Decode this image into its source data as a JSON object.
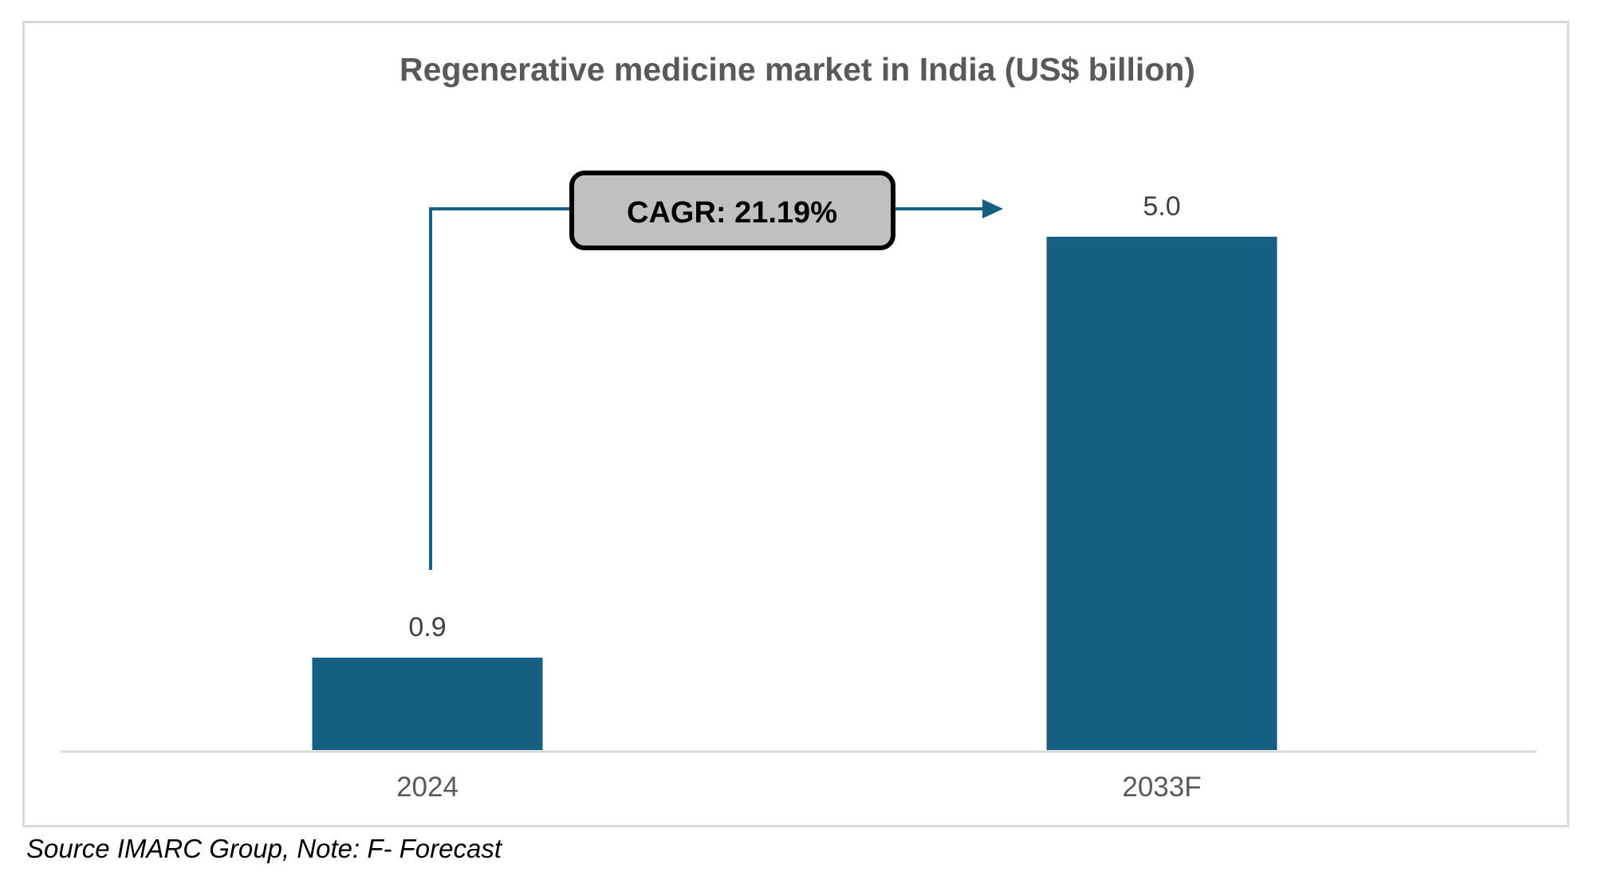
{
  "chart_data": {
    "type": "bar",
    "title": "Regenerative medicine market in India (US$ billion)",
    "categories": [
      "2024",
      "2033F"
    ],
    "values": [
      0.9,
      5.0
    ],
    "value_labels": [
      "0.9",
      "5.0"
    ],
    "xlabel": "",
    "ylabel": "",
    "ylim": [
      0,
      5.0
    ],
    "grid": false,
    "legend": "none",
    "bar_color": "#165f82",
    "annotation": {
      "text": "CAGR: 21.19%",
      "from_category": "2024",
      "to_category": "2033F",
      "box_fill": "#c0c0c0",
      "arrow_color": "#165f82"
    }
  },
  "footer": {
    "source": "Source IMARC Group, Note: F- Forecast"
  },
  "colors": {
    "frame": "#d9d9d9",
    "axis": "#d9d9d9",
    "title": "#595959"
  }
}
